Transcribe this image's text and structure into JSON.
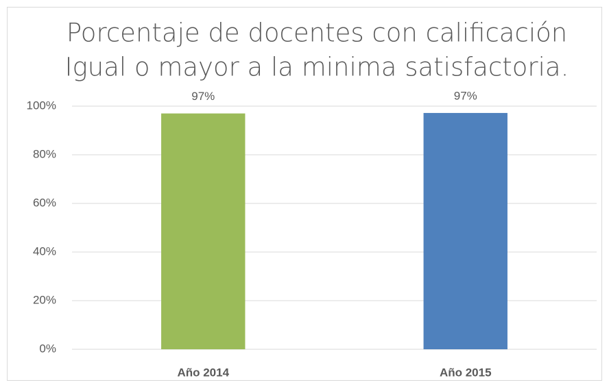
{
  "chart_data": {
    "type": "bar",
    "title": [
      "Porcentaje de docentes con calificación",
      "Igual o mayor a la minima satisfactoria."
    ],
    "categories": [
      "Año 2014",
      "Año 2015"
    ],
    "values": [
      97,
      97.2
    ],
    "value_labels": [
      "97%",
      "97%"
    ],
    "colors": [
      "#9bbb59",
      "#4f81bd"
    ],
    "ylim": [
      0,
      100
    ],
    "yticks": [
      {
        "value": 0,
        "label": "0%"
      },
      {
        "value": 20,
        "label": "20%"
      },
      {
        "value": 40,
        "label": "40%"
      },
      {
        "value": 60,
        "label": "60%"
      },
      {
        "value": 80,
        "label": "80%"
      },
      {
        "value": 100,
        "label": "100%"
      }
    ],
    "grid": true
  }
}
